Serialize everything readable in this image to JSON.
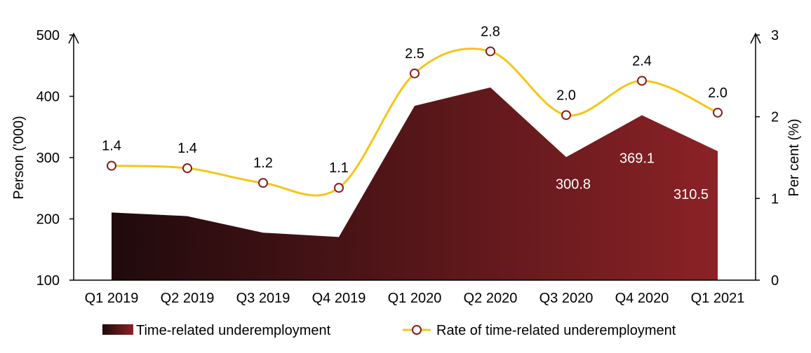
{
  "chart_data": {
    "type": "area",
    "categories": [
      "Q1 2019",
      "Q2 2019",
      "Q3 2019",
      "Q4 2019",
      "Q1 2020",
      "Q2 2020",
      "Q3 2020",
      "Q4 2020",
      "Q1 2021"
    ],
    "series": [
      {
        "name": "Time-related underemployment",
        "type": "area",
        "axis": "left",
        "values": [
          210.5,
          204.5,
          177.5,
          170.5,
          384.5,
          414.5,
          300.8,
          369.1,
          310.5
        ],
        "labels": [
          "",
          "",
          "",
          "",
          "",
          "",
          "300.8",
          "369.1",
          "310.5"
        ],
        "color_start": "#1f0a0c",
        "color_end": "#8b2226"
      },
      {
        "name": "Rate of time-related underemployment",
        "type": "line",
        "axis": "right",
        "values": [
          1.4,
          1.37,
          1.19,
          1.13,
          2.53,
          2.8,
          2.02,
          2.44,
          2.05
        ],
        "labels": [
          "1.4",
          "1.4",
          "1.2",
          "1.1",
          "2.5",
          "2.8",
          "2.0",
          "2.4",
          "2.0"
        ],
        "color": "#f5c518",
        "marker_edge": "#8b1a1a"
      }
    ],
    "ylabel_left": "Person ('000)",
    "ylabel_right": "Per cent (%)",
    "ylim_left": [
      100,
      500
    ],
    "yticks_left": [
      "100",
      "200",
      "300",
      "400",
      "500"
    ],
    "ylim_right": [
      0,
      3
    ],
    "yticks_right": [
      "0",
      "1",
      "2",
      "3"
    ],
    "legend_position": "bottom"
  }
}
